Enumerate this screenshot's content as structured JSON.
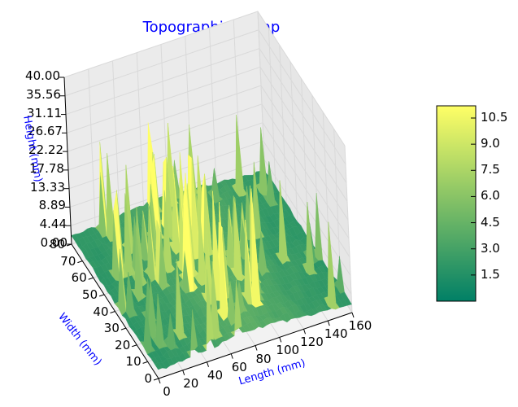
{
  "chart_data": {
    "type": "surface3d",
    "title": "Topographical Map",
    "xlabel": "Length (mm)",
    "ylabel": "Width (mm)",
    "zlabel": "Height (mm)",
    "xlim": [
      0,
      160
    ],
    "ylim": [
      0,
      80
    ],
    "zlim": [
      0,
      40
    ],
    "x_ticks": [
      "0",
      "20",
      "40",
      "60",
      "80",
      "100",
      "120",
      "140",
      "160"
    ],
    "y_ticks": [
      "0",
      "10",
      "20",
      "30",
      "40",
      "50",
      "60",
      "70",
      "80"
    ],
    "z_ticks": [
      "0.00",
      "4.44",
      "8.89",
      "13.33",
      "17.78",
      "22.22",
      "26.67",
      "31.11",
      "35.56",
      "40.00"
    ],
    "colorbar": {
      "colormap": "summer",
      "range": [
        0,
        11.2
      ],
      "ticks": [
        "1.5",
        "3.0",
        "4.5",
        "6.0",
        "7.5",
        "9.0",
        "10.5"
      ],
      "tick_values": [
        1.5,
        3.0,
        4.5,
        6.0,
        7.5,
        9.0,
        10.5
      ]
    },
    "colors": {
      "low": "#008066",
      "high": "#ffff66",
      "title": "#0000ff",
      "axis_label": "#0000ff"
    }
  }
}
